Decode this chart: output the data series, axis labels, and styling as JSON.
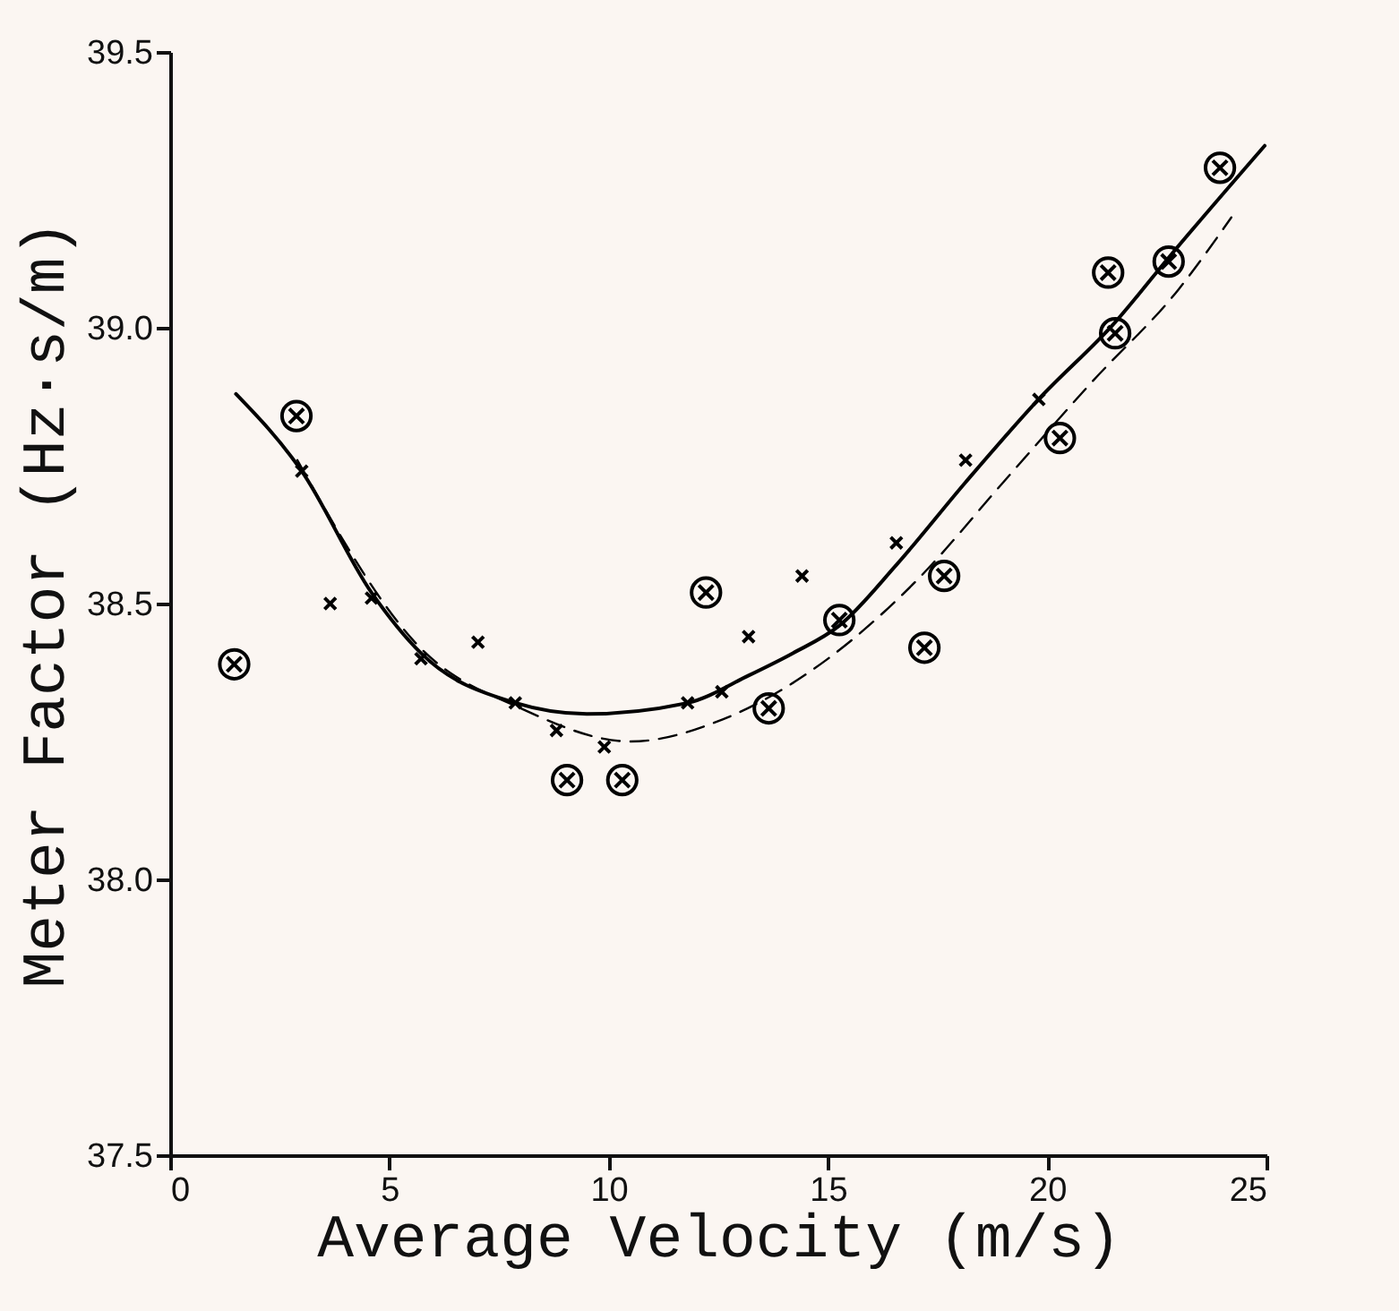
{
  "chart_data": {
    "type": "scatter",
    "xlabel": "Average Velocity (m/s)",
    "ylabel": "Meter Factor (Hz·s/m)",
    "xlim": [
      0,
      25
    ],
    "xticks": [
      0,
      5,
      10,
      15,
      20,
      25
    ],
    "ylim": [
      37.5,
      39.5
    ],
    "yticks": [
      37.5,
      {
        "value": 38,
        "label": "38.0"
      },
      38.5,
      {
        "value": 39,
        "label": "39.0"
      },
      39.5
    ],
    "grid": false,
    "series": [
      {
        "marker": "cross",
        "color": "#000000",
        "x": [
          3.0,
          3.65,
          4.59,
          5.72,
          7.02,
          7.87,
          8.81,
          9.9,
          11.8,
          12.58,
          13.19,
          14.41,
          16.56,
          18.14,
          19.81
        ],
        "values": [
          38.74,
          38.5,
          38.51,
          38.4,
          38.43,
          38.32,
          38.27,
          38.24,
          38.32,
          38.34,
          38.44,
          38.55,
          38.61,
          38.76,
          38.87
        ]
      },
      {
        "color": "#000000",
        "x": [
          1.46,
          2.88,
          9.05,
          10.31,
          12.22,
          13.65,
          15.26,
          17.2,
          17.65,
          20.29,
          21.55,
          21.39,
          22.77,
          23.94
        ],
        "values": [
          38.39,
          38.84,
          38.18,
          38.18,
          38.52,
          38.31,
          38.47,
          38.42,
          38.55,
          38.8,
          38.99,
          39.1,
          39.12,
          39.29
        ]
      },
      {
        "type": "line",
        "line_style": "solid",
        "color": "#000000",
        "x": [
          1.5,
          3.0,
          4.59,
          5.72,
          7.87,
          9.5,
          11.8,
          13.2,
          14.2,
          15.26,
          16.56,
          18.14,
          19.8,
          21.55,
          22.8,
          24.96
        ],
        "values": [
          38.88,
          38.74,
          38.52,
          38.41,
          38.32,
          38.3,
          38.32,
          38.37,
          38.41,
          38.46,
          38.57,
          38.72,
          38.87,
          39.01,
          39.13,
          39.33
        ]
      },
      {
        "type": "line",
        "line_style": "dashed",
        "color": "#000000",
        "x": [
          2.9,
          5.7,
          8.0,
          10.5,
          12.6,
          15.0,
          17.0,
          19.0,
          21.0,
          23.0,
          24.2
        ],
        "values": [
          38.76,
          38.42,
          38.31,
          38.25,
          38.29,
          38.4,
          38.54,
          38.72,
          38.9,
          39.07,
          39.2
        ]
      }
    ]
  }
}
